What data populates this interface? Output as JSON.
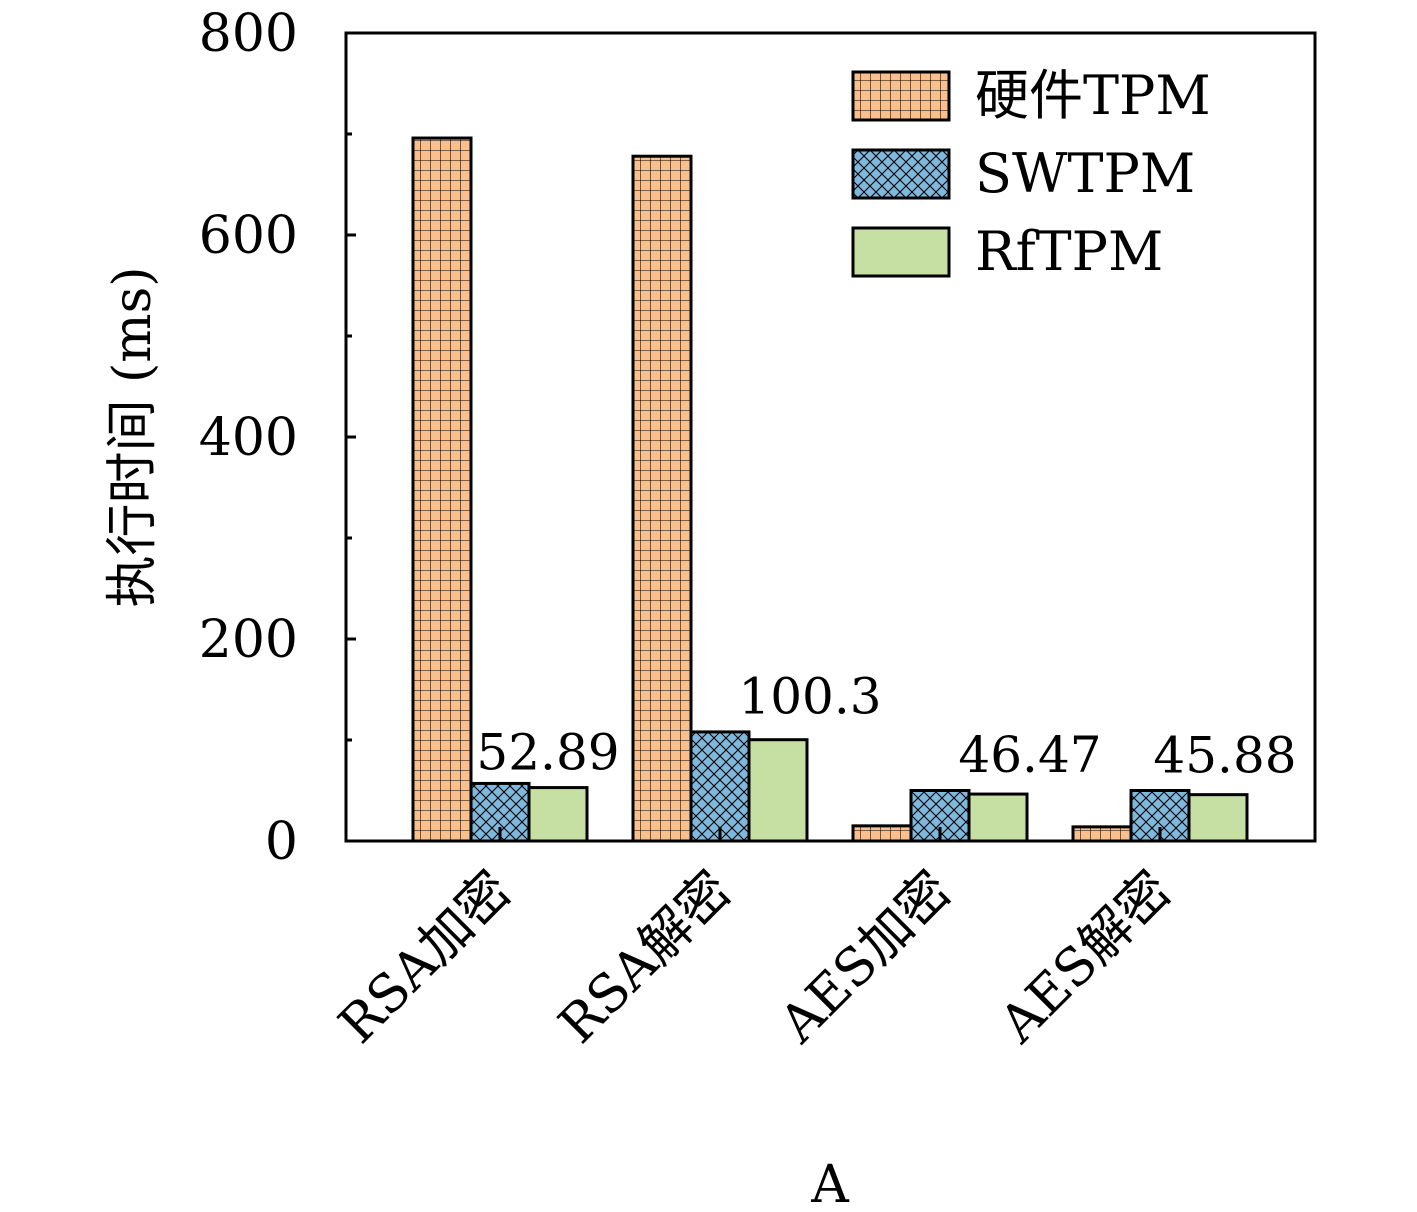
{
  "chart_data": {
    "type": "bar",
    "title": "",
    "xlabel": "A",
    "ylabel": "执行时间 (ms)",
    "ylim": [
      0,
      800
    ],
    "yticks": [
      0,
      200,
      400,
      600,
      800
    ],
    "categories": [
      "RSA加密",
      "RSA解密",
      "AES加密",
      "AES解密"
    ],
    "series": [
      {
        "name": "硬件TPM",
        "values": [
          696,
          678,
          15,
          14
        ],
        "color": "#f9c08e",
        "pattern": "grid"
      },
      {
        "name": "SWTPM",
        "values": [
          57,
          108,
          50,
          50
        ],
        "color": "#7eb9dd",
        "pattern": "crosshatch"
      },
      {
        "name": "RfTPM",
        "values": [
          52.89,
          100.3,
          46.47,
          45.88
        ],
        "color": "#c6e0a4",
        "pattern": "solid"
      }
    ],
    "data_labels": [
      "52.89",
      "100.3",
      "46.47",
      "45.88"
    ],
    "legend_position": "top-right",
    "grid": false
  }
}
